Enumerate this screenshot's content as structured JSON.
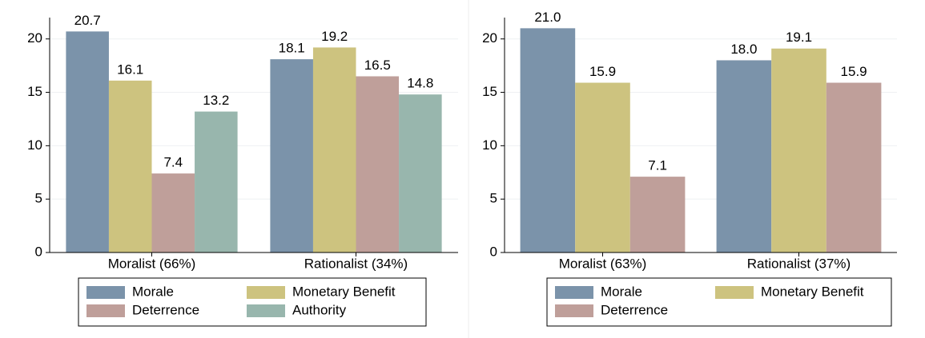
{
  "chart_data": [
    {
      "type": "bar",
      "categories": [
        "Moralist (66%)",
        "Rationalist (34%)"
      ],
      "series": [
        {
          "name": "Morale",
          "color": "#7b93aa",
          "values": [
            20.7,
            18.1
          ]
        },
        {
          "name": "Monetary Benefit",
          "color": "#cdc37f",
          "values": [
            16.1,
            19.2
          ]
        },
        {
          "name": "Deterrence",
          "color": "#bf9f9a",
          "values": [
            7.4,
            16.5
          ]
        },
        {
          "name": "Authority",
          "color": "#98b6ad",
          "values": [
            13.2,
            14.8
          ]
        }
      ],
      "ylim": [
        0,
        22
      ],
      "yticks": [
        0,
        5,
        10,
        15,
        20
      ],
      "grid": true
    },
    {
      "type": "bar",
      "categories": [
        "Moralist (63%)",
        "Rationalist (37%)"
      ],
      "series": [
        {
          "name": "Morale",
          "color": "#7b93aa",
          "values": [
            21,
            18
          ],
          "value_labels": [
            "21.0",
            "18.0"
          ]
        },
        {
          "name": "Monetary Benefit",
          "color": "#cdc37f",
          "values": [
            15.9,
            19.1
          ]
        },
        {
          "name": "Deterrence",
          "color": "#bf9f9a",
          "values": [
            7.1,
            15.9
          ]
        }
      ],
      "ylim": [
        0,
        22
      ],
      "yticks": [
        0,
        5,
        10,
        15,
        20
      ],
      "grid": true
    }
  ]
}
